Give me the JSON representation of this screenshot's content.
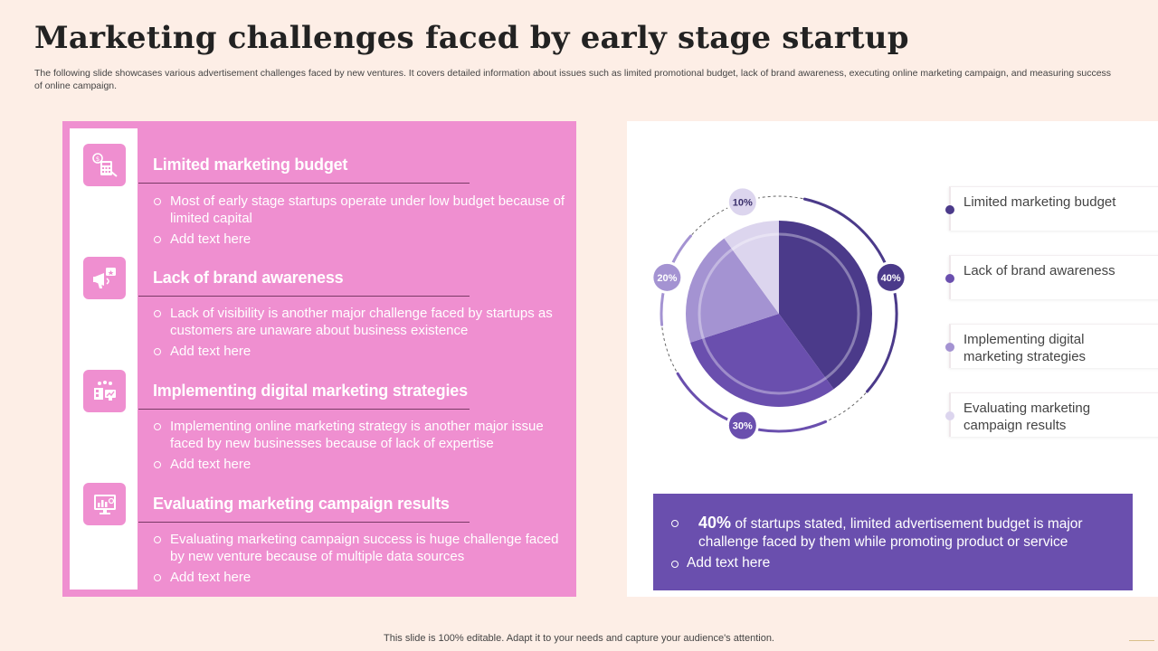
{
  "title": "Marketing challenges faced by early stage startup",
  "subtitle": "The following slide showcases various advertisement challenges faced by new ventures. It covers detailed information about issues such as limited promotional budget, lack of brand awareness, executing online marketing campaign, and measuring success of online campaign.",
  "sections": [
    {
      "icon": "budget-calculator-icon",
      "title": "Limited marketing budget",
      "bullets": [
        "Most of early stage startups  operate under low budget because of limited capital",
        "Add text here"
      ]
    },
    {
      "icon": "megaphone-icon",
      "title": "Lack of brand awareness",
      "bullets": [
        "Lack of visibility is another  major  challenge  faced by startups as customers are unaware about business existence",
        "Add text here"
      ]
    },
    {
      "icon": "digital-marketing-icon",
      "title": "Implementing digital marketing strategies",
      "bullets": [
        "Implementing  online  marketing  strategy  is another  major issue faced by new businesses because of lack of expertise",
        "Add text here"
      ]
    },
    {
      "icon": "analytics-monitor-icon",
      "title": "Evaluating marketing campaign results",
      "bullets": [
        "Evaluating  marketing  campaign  success  is huge  challenge faced by new venture  because of multiple data sources",
        "Add text here"
      ]
    }
  ],
  "chart_data": {
    "type": "pie",
    "categories": [
      "Limited marketing budget",
      "Lack of brand awareness",
      "Implementing digital marketing strategies",
      "Evaluating marketing campaign results"
    ],
    "values": [
      40,
      30,
      20,
      10
    ],
    "labels": [
      "40%",
      "30%",
      "20%",
      "10%"
    ],
    "colors": [
      "#4b3a8a",
      "#6a4fae",
      "#a493d2",
      "#dcd5ee"
    ],
    "legend_position": "right"
  },
  "note": {
    "percent": "40%",
    "text": "of startups  stated, limited advertisement budget is major challenge faced by them while promoting product or service",
    "extra": "Add text here"
  },
  "footer": "This slide is 100% editable. Adapt it to your needs and capture your audience's attention."
}
